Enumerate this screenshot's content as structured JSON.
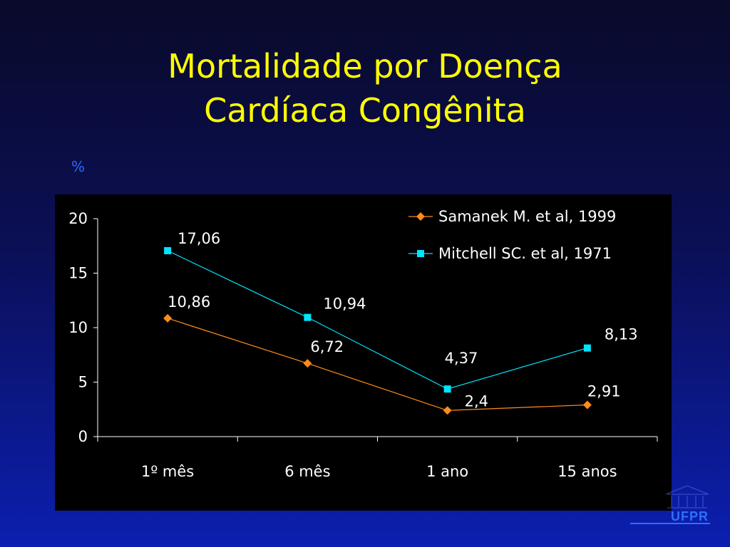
{
  "slide": {
    "title_line1": "Mortalidade por Doença",
    "title_line2": "Cardíaca Congênita",
    "unit_label": "%",
    "logo_text": "UFPR"
  },
  "colors": {
    "title": "#ffff00",
    "series_samanek": "#ff8c1a",
    "series_mitchell": "#00e5ff"
  },
  "chart_data": {
    "type": "line",
    "categories": [
      "1º mês",
      "6 mês",
      "1 ano",
      "15 anos"
    ],
    "yticks": [
      "0",
      "5",
      "10",
      "15",
      "20"
    ],
    "ylim": [
      0,
      20
    ],
    "grid": false,
    "legend_position": "top-right",
    "series": [
      {
        "name": "Samanek M. et al, 1999",
        "values": [
          10.86,
          6.72,
          2.4,
          2.91
        ],
        "labels": [
          "10,86",
          "6,72",
          "2,4",
          "2,91"
        ],
        "marker": "diamond",
        "color": "#ff8c1a"
      },
      {
        "name": "Mitchell SC. et al, 1971",
        "values": [
          17.06,
          10.94,
          4.37,
          8.13
        ],
        "labels": [
          "17,06",
          "10,94",
          "4,37",
          "8,13"
        ],
        "marker": "square",
        "color": "#00e5ff"
      }
    ]
  }
}
